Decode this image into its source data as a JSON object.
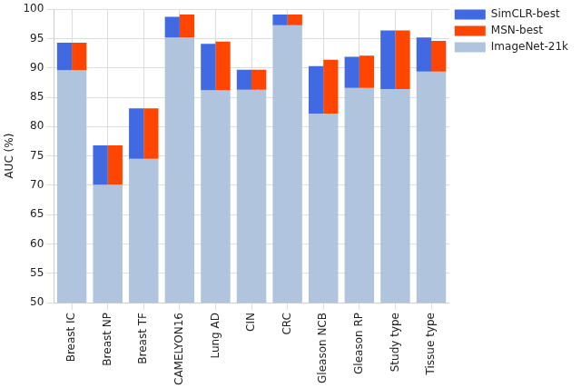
{
  "chart_data": {
    "type": "bar",
    "y_label": "AUC (%)",
    "categories": [
      "Breast IC",
      "Breast NP",
      "Breast TF",
      "CAMELYON16",
      "Lung AD",
      "CIN",
      "CRC",
      "Gleason NCB",
      "Gleason RP",
      "Study type",
      "Tissue type"
    ],
    "series": [
      {
        "name": "ImageNet-21k",
        "color": "#b0c4de",
        "values": [
          89.6,
          70.1,
          74.5,
          95.2,
          86.2,
          86.3,
          97.3,
          82.2,
          86.6,
          86.4,
          89.4
        ]
      },
      {
        "name": "SimCLR-best",
        "color": "#4169e1",
        "values": [
          94.3,
          76.8,
          83.1,
          98.7,
          94.1,
          89.7,
          99.1,
          90.3,
          91.9,
          96.4,
          95.2
        ]
      },
      {
        "name": "MSN-best",
        "color": "#ff4500",
        "values": [
          94.3,
          76.8,
          83.1,
          99.1,
          94.5,
          89.7,
          99.1,
          91.4,
          92.1,
          96.4,
          94.6
        ]
      }
    ],
    "ylim": [
      50,
      100
    ],
    "yticks": [
      50,
      55,
      60,
      65,
      70,
      75,
      80,
      85,
      90,
      95,
      100
    ],
    "grid": true,
    "legend": "right"
  }
}
